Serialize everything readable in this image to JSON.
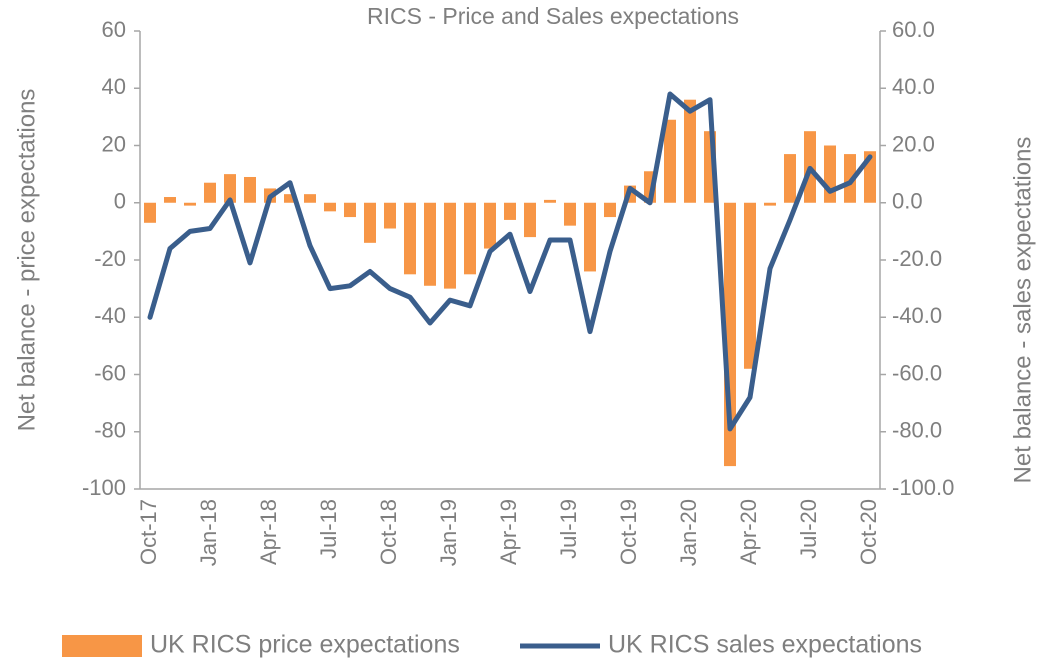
{
  "chart_data": {
    "type": "bar-line",
    "title": "RICS - Price and Sales expectations",
    "ylabel": "Net balance - price expectations",
    "y2label": "Net balance - sales expectations",
    "categories": [
      "Oct-17",
      null,
      null,
      "Jan-18",
      null,
      null,
      "Apr-18",
      null,
      null,
      "Jul-18",
      null,
      null,
      "Oct-18",
      null,
      null,
      "Jan-19",
      null,
      null,
      "Apr-19",
      null,
      null,
      "Jul-19",
      null,
      null,
      "Oct-19",
      null,
      null,
      "Jan-20",
      null,
      null,
      "Apr-20",
      null,
      null,
      "Jul-20",
      null,
      null,
      "Oct-20"
    ],
    "series": [
      {
        "name": "UK RICS price expectations",
        "type": "bar",
        "color": "#f79646",
        "values": [
          -7,
          2,
          -1,
          7,
          10,
          9,
          5,
          3,
          3,
          -3,
          -5,
          -14,
          -9,
          -25,
          -29,
          -30,
          -25,
          -16,
          -6,
          -12,
          1,
          -8,
          -24,
          -5,
          6,
          11,
          29,
          36,
          25,
          -92,
          -58,
          -1,
          17,
          25,
          20,
          17,
          18
        ]
      },
      {
        "name": "UK RICS sales expectations",
        "type": "line",
        "axis": "y2",
        "color": "#3a5e8c",
        "values": [
          -40,
          -16,
          -10,
          -9,
          1,
          -21,
          2,
          7,
          -15,
          -30,
          -29,
          -24,
          -30,
          -33,
          -42,
          -34,
          -36,
          -17,
          -11,
          -31,
          -13,
          -13,
          -45,
          -17,
          5,
          0,
          38,
          32,
          36,
          -79,
          -68,
          -23,
          -6,
          12,
          4,
          7,
          16
        ]
      }
    ],
    "ylim": [
      -100,
      60
    ],
    "yticks": [
      -100,
      -80,
      -60,
      -40,
      -20,
      0,
      20,
      40,
      60
    ],
    "y2lim": [
      -100,
      60
    ],
    "y2ticks": [
      {
        "value": -100,
        "label": "-100.0"
      },
      {
        "value": -80,
        "label": "-80.0"
      },
      {
        "value": -60,
        "label": "-60.0"
      },
      {
        "value": -40,
        "label": "-40.0"
      },
      {
        "value": -20,
        "label": "-20.0"
      },
      {
        "value": 0,
        "label": "0.0"
      },
      {
        "value": 20,
        "label": "20.0"
      },
      {
        "value": 40,
        "label": "40.0"
      },
      {
        "value": 60,
        "label": "60.0"
      }
    ],
    "grid": false,
    "legend": "bottom"
  }
}
